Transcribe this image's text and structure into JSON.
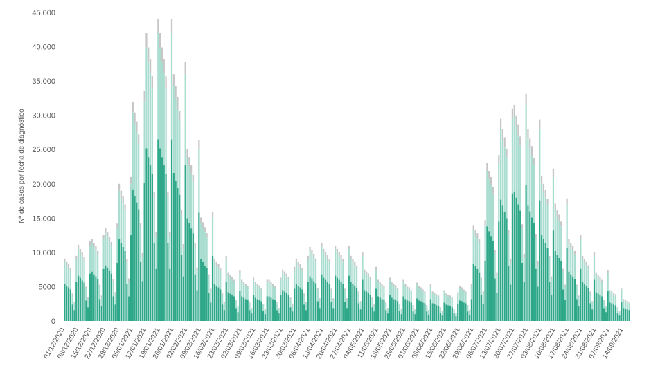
{
  "chart_data": {
    "type": "stacked_bar",
    "y_label": "Nº de casos por fecha de diagnóstico",
    "ylim": [
      0,
      45000
    ],
    "yticks": [
      0,
      5000,
      {
        "value": 10000,
        "label": "10.000"
      },
      {
        "value": 15000,
        "label": "15.000"
      },
      {
        "value": 20000,
        "label": "20.000"
      },
      {
        "value": 25000,
        "label": "25.000"
      },
      {
        "value": 30000,
        "label": "30.000"
      },
      {
        "value": 35000,
        "label": "35.000"
      },
      {
        "value": 40000,
        "label": "40.000"
      },
      {
        "value": 45000,
        "label": "45.000"
      }
    ],
    "categories": [
      "01/12/2020",
      null,
      null,
      null,
      null,
      null,
      null,
      "08/12/2020",
      null,
      null,
      null,
      null,
      null,
      null,
      "15/12/2020",
      null,
      null,
      null,
      null,
      null,
      null,
      "22/12/2020",
      null,
      null,
      null,
      null,
      null,
      null,
      "29/12/2020",
      null,
      null,
      null,
      null,
      null,
      null,
      "05/01/2021",
      null,
      null,
      null,
      null,
      null,
      null,
      "12/01/2021",
      null,
      null,
      null,
      null,
      null,
      null,
      "19/01/2021",
      null,
      null,
      null,
      null,
      null,
      null,
      "26/01/2021",
      null,
      null,
      null,
      null,
      null,
      null,
      "02/02/2021",
      null,
      null,
      null,
      null,
      null,
      null,
      "09/02/2021",
      null,
      null,
      null,
      null,
      null,
      null,
      "16/02/2021",
      null,
      null,
      null,
      null,
      null,
      null,
      "23/02/2021",
      null,
      null,
      null,
      null,
      null,
      null,
      "02/03/2021",
      null,
      null,
      null,
      null,
      null,
      null,
      "09/03/2021",
      null,
      null,
      null,
      null,
      null,
      null,
      "16/03/2021",
      null,
      null,
      null,
      null,
      null,
      null,
      "23/03/2021",
      null,
      null,
      null,
      null,
      null,
      null,
      "30/03/2021",
      null,
      null,
      null,
      null,
      null,
      null,
      "06/04/2021",
      null,
      null,
      null,
      null,
      null,
      null,
      "13/04/2021",
      null,
      null,
      null,
      null,
      null,
      null,
      "20/04/2021",
      null,
      null,
      null,
      null,
      null,
      null,
      "27/04/2021",
      null,
      null,
      null,
      null,
      null,
      null,
      "04/05/2021",
      null,
      null,
      null,
      null,
      null,
      null,
      "11/05/2021",
      null,
      null,
      null,
      null,
      null,
      null,
      "18/05/2021",
      null,
      null,
      null,
      null,
      null,
      null,
      "25/05/2021",
      null,
      null,
      null,
      null,
      null,
      null,
      "01/06/2021",
      null,
      null,
      null,
      null,
      null,
      null,
      "08/06/2021",
      null,
      null,
      null,
      null,
      null,
      null,
      "15/06/2021",
      null,
      null,
      null,
      null,
      null,
      null,
      "22/06/2021",
      null,
      null,
      null,
      null,
      null,
      null,
      "29/06/2021",
      null,
      null,
      null,
      null,
      null,
      null,
      "06/07/2021",
      null,
      null,
      null,
      null,
      null,
      null,
      "13/07/2021",
      null,
      null,
      null,
      null,
      null,
      null,
      "20/07/2021",
      null,
      null,
      null,
      null,
      null,
      null,
      "27/07/2021",
      null,
      null,
      null,
      null,
      null,
      null,
      "03/08/2021",
      null,
      null,
      null,
      null,
      null,
      null,
      "10/08/2021",
      null,
      null,
      null,
      null,
      null,
      null,
      "17/08/2021",
      null,
      null,
      null,
      null,
      null,
      null,
      "24/08/2021",
      null,
      null,
      null,
      null,
      null,
      null,
      "31/08/2021",
      null,
      null,
      null,
      null,
      null,
      null,
      "07/09/2021",
      null,
      null,
      null,
      null,
      null,
      null,
      "14/09/2021",
      null,
      null,
      null
    ],
    "series": [
      {
        "color": "#2fa88a",
        "values": [
          5400,
          5100,
          4900,
          4600,
          2400,
          1600,
          5700,
          6600,
          6300,
          5900,
          5600,
          3000,
          2000,
          6900,
          7200,
          6800,
          6500,
          6100,
          3200,
          2200,
          7600,
          8100,
          7700,
          7300,
          6900,
          3600,
          2400,
          8500,
          12000,
          11400,
          10800,
          10200,
          5400,
          3600,
          12600,
          19200,
          18200,
          17300,
          16300,
          8600,
          5800,
          20200,
          25200,
          23900,
          22700,
          21400,
          11300,
          7600,
          26500,
          25200,
          23900,
          22700,
          21400,
          11300,
          7600,
          26500,
          21600,
          20500,
          19400,
          18400,
          9700,
          6500,
          22700,
          15000,
          14300,
          13500,
          12800,
          6800,
          4500,
          15800,
          9000,
          8600,
          8100,
          7700,
          4100,
          2700,
          9500,
          5400,
          5100,
          4900,
          4600,
          2400,
          1600,
          5700,
          4200,
          4000,
          3800,
          3600,
          1900,
          1300,
          4400,
          3600,
          3400,
          3200,
          3100,
          1600,
          1100,
          3800,
          3400,
          3200,
          3100,
          2900,
          1500,
          1000,
          3600,
          3600,
          3400,
          3200,
          3100,
          1600,
          1100,
          3800,
          4500,
          4300,
          4100,
          3800,
          2000,
          1400,
          4700,
          5400,
          5100,
          4900,
          4600,
          2400,
          1600,
          5700,
          6500,
          6200,
          5800,
          5500,
          2900,
          1900,
          6800,
          6300,
          6000,
          5700,
          5400,
          2800,
          1900,
          6600,
          6300,
          6000,
          5700,
          5400,
          2800,
          1900,
          6600,
          5700,
          5400,
          5100,
          4800,
          2600,
          1700,
          6000,
          4500,
          4300,
          4100,
          3800,
          2000,
          1400,
          4700,
          3600,
          3400,
          3200,
          3100,
          1600,
          1100,
          3800,
          3400,
          3200,
          3100,
          2900,
          1500,
          1000,
          3600,
          3200,
          3000,
          2900,
          2700,
          1400,
          1000,
          3300,
          3000,
          2900,
          2700,
          2600,
          1400,
          900,
          3200,
          2600,
          2500,
          2300,
          2200,
          1200,
          800,
          2700,
          2400,
          2300,
          2200,
          2000,
          1100,
          700,
          2500,
          3000,
          2900,
          2700,
          2600,
          1400,
          900,
          3200,
          8400,
          8000,
          7600,
          7100,
          3800,
          2500,
          8800,
          13800,
          13100,
          12400,
          11700,
          6200,
          4100,
          14500,
          17700,
          16800,
          15900,
          15000,
          8000,
          5300,
          18600,
          18900,
          18000,
          17000,
          16100,
          8500,
          5700,
          19800,
          16800,
          16000,
          15100,
          14300,
          7600,
          5000,
          17600,
          12600,
          12000,
          11300,
          10700,
          5700,
          3800,
          13200,
          10200,
          9700,
          9200,
          8700,
          4600,
          3100,
          10700,
          7200,
          6800,
          6500,
          6100,
          3200,
          2200,
          7600,
          5700,
          5400,
          5100,
          4800,
          2600,
          1700,
          6000,
          4200,
          4000,
          3800,
          3600,
          1900,
          1300,
          4400,
          2700,
          2600,
          2400,
          2300,
          1200,
          800,
          2800,
          1900,
          1800,
          1700,
          1600
        ]
      },
      {
        "color": "#a9ddd0",
        "values": [
          3200,
          3000,
          2900,
          2700,
          1400,
          1000,
          3300,
          3900,
          3600,
          3500,
          3300,
          1800,
          1200,
          4100,
          4200,
          4000,
          3800,
          3600,
          1900,
          1300,
          4400,
          4700,
          4500,
          4300,
          4100,
          2200,
          1500,
          5000,
          7000,
          6600,
          6400,
          6000,
          3200,
          2200,
          7400,
          11200,
          10600,
          10200,
          9600,
          5100,
          3500,
          11800,
          14700,
          13900,
          13400,
          12600,
          6700,
          4600,
          15500,
          14700,
          13900,
          13400,
          12600,
          6700,
          4600,
          15500,
          12600,
          11900,
          11500,
          10800,
          5800,
          4000,
          13300,
          8800,
          8300,
          8000,
          7500,
          4000,
          2800,
          9300,
          5300,
          5000,
          4800,
          4500,
          2400,
          1700,
          5600,
          3200,
          3000,
          2900,
          2700,
          1400,
          1000,
          3300,
          2500,
          2300,
          2200,
          2100,
          1100,
          800,
          2600,
          2100,
          2000,
          1900,
          1800,
          1000,
          700,
          2200,
          2000,
          1900,
          1800,
          1700,
          900,
          600,
          2100,
          2100,
          2000,
          1900,
          1800,
          1000,
          700,
          2200,
          2600,
          2500,
          2400,
          2300,
          1200,
          800,
          2800,
          3200,
          3000,
          2900,
          2700,
          1400,
          1000,
          3300,
          3800,
          3600,
          3500,
          3200,
          1700,
          1200,
          4000,
          3700,
          3500,
          3400,
          3200,
          1700,
          1200,
          3900,
          3700,
          3500,
          3400,
          3200,
          1700,
          1200,
          3900,
          3300,
          3100,
          3000,
          2900,
          1500,
          1000,
          3500,
          2600,
          2500,
          2400,
          2300,
          1200,
          800,
          2800,
          2100,
          2000,
          1900,
          1800,
          1000,
          700,
          2200,
          2000,
          1900,
          1800,
          1700,
          900,
          600,
          2100,
          1900,
          1700,
          1700,
          1600,
          800,
          600,
          2000,
          1800,
          1700,
          1600,
          1500,
          800,
          600,
          1900,
          1500,
          1400,
          1400,
          1300,
          700,
          500,
          1600,
          1400,
          1300,
          1300,
          1200,
          600,
          400,
          1500,
          1800,
          1700,
          1600,
          1500,
          800,
          600,
          1900,
          4900,
          4600,
          4500,
          4200,
          2200,
          1500,
          5200,
          8100,
          7600,
          7400,
          6900,
          3700,
          2500,
          8500,
          10300,
          9700,
          9400,
          8900,
          4700,
          3200,
          10900,
          11000,
          10400,
          10100,
          9500,
          5000,
          3500,
          11700,
          9800,
          9200,
          9000,
          8400,
          4500,
          3100,
          10400,
          7400,
          6900,
          6700,
          6300,
          3400,
          2300,
          7800,
          6000,
          5600,
          5400,
          5100,
          2700,
          1900,
          6300,
          4200,
          4000,
          3800,
          3600,
          1900,
          1300,
          4400,
          3300,
          3100,
          3000,
          2900,
          1500,
          1000,
          3500,
          2500,
          2300,
          2200,
          2100,
          1100,
          800,
          2600,
          1600,
          1500,
          1400,
          1400,
          700,
          500,
          1700,
          1100,
          1100,
          1000,
          1000
        ]
      },
      {
        "color": "#c6c6c6",
        "values": [
          500,
          500,
          500,
          400,
          200,
          200,
          500,
          600,
          600,
          600,
          400,
          200,
          200,
          600,
          600,
          600,
          600,
          500,
          200,
          200,
          600,
          700,
          700,
          700,
          500,
          300,
          300,
          700,
          1000,
          1000,
          1000,
          800,
          400,
          400,
          1000,
          1600,
          1600,
          1600,
          1300,
          600,
          600,
          1600,
          2100,
          2100,
          2100,
          1700,
          800,
          800,
          2100,
          2100,
          2100,
          2100,
          1700,
          800,
          800,
          2100,
          1800,
          1800,
          1800,
          1400,
          700,
          700,
          1800,
          1300,
          1300,
          1300,
          1000,
          500,
          500,
          1300,
          800,
          800,
          800,
          600,
          300,
          300,
          800,
          500,
          500,
          500,
          400,
          200,
          200,
          500,
          400,
          400,
          400,
          300,
          100,
          100,
          400,
          300,
          300,
          300,
          200,
          100,
          100,
          300,
          300,
          300,
          300,
          200,
          100,
          100,
          300,
          300,
          300,
          300,
          200,
          100,
          100,
          300,
          400,
          400,
          400,
          300,
          200,
          200,
          400,
          500,
          500,
          500,
          400,
          200,
          200,
          500,
          500,
          500,
          500,
          400,
          200,
          200,
          500,
          500,
          500,
          500,
          400,
          200,
          200,
          500,
          500,
          500,
          500,
          400,
          200,
          200,
          500,
          500,
          500,
          500,
          400,
          200,
          200,
          500,
          400,
          400,
          400,
          300,
          200,
          200,
          400,
          300,
          300,
          300,
          200,
          100,
          100,
          300,
          300,
          300,
          300,
          200,
          100,
          100,
          300,
          300,
          300,
          300,
          200,
          100,
          100,
          300,
          300,
          300,
          300,
          200,
          100,
          100,
          300,
          200,
          200,
          200,
          200,
          100,
          100,
          200,
          200,
          200,
          200,
          200,
          100,
          100,
          200,
          300,
          300,
          300,
          200,
          100,
          100,
          300,
          700,
          700,
          700,
          600,
          300,
          300,
          700,
          1200,
          1200,
          1200,
          900,
          500,
          500,
          1200,
          1500,
          1500,
          1500,
          1200,
          600,
          600,
          1500,
          1600,
          1600,
          1600,
          1300,
          600,
          600,
          1600,
          1400,
          1400,
          1400,
          1100,
          600,
          600,
          1400,
          1100,
          1100,
          1100,
          800,
          400,
          400,
          1100,
          900,
          900,
          900,
          700,
          300,
          300,
          900,
          600,
          600,
          600,
          500,
          200,
          200,
          600,
          500,
          500,
          500,
          400,
          200,
          200,
          500,
          400,
          400,
          400,
          300,
          100,
          100,
          400,
          200,
          200,
          200,
          200,
          100,
          100,
          200,
          200,
          200,
          200,
          100
        ]
      }
    ]
  }
}
